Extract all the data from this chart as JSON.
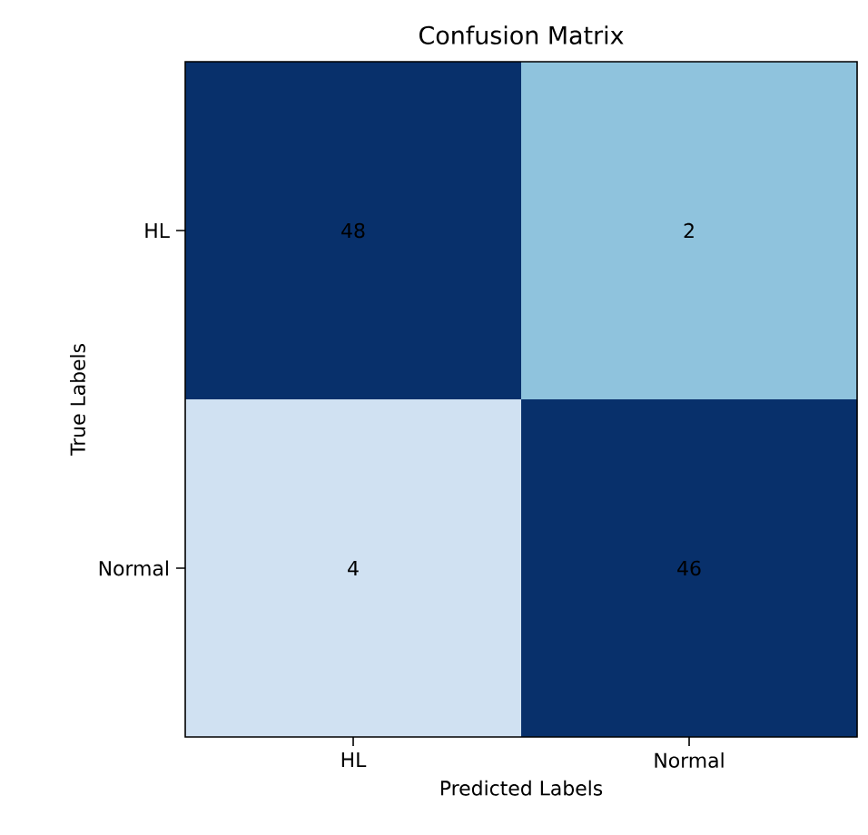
{
  "chart_data": {
    "type": "heatmap",
    "title": "Confusion Matrix",
    "xlabel": "Predicted Labels",
    "ylabel": "True Labels",
    "categories": [
      "HL",
      "Normal"
    ],
    "y_categories": [
      "HL",
      "Normal"
    ],
    "cells": [
      [
        48,
        2
      ],
      [
        4,
        46
      ]
    ],
    "colors": [
      [
        "#08306b",
        "#8fc3dd"
      ],
      [
        "#d0e1f2",
        "#08306b"
      ]
    ],
    "data_labels": true
  }
}
